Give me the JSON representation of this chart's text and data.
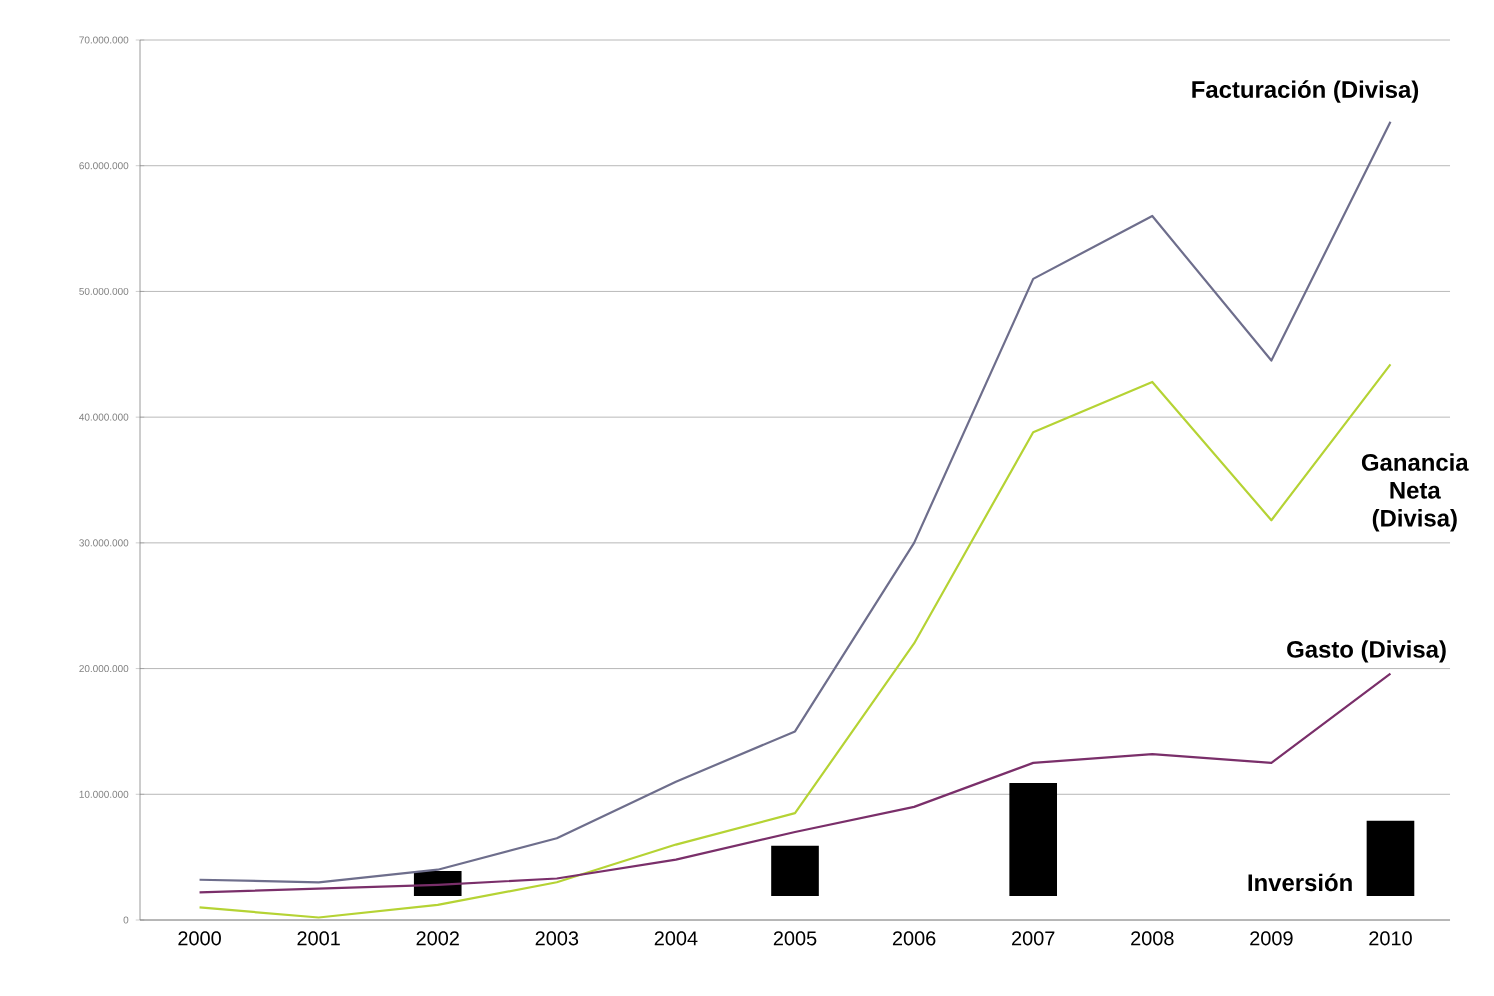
{
  "chart_data": {
    "type": "line",
    "categories": [
      "2000",
      "2001",
      "2002",
      "2003",
      "2004",
      "2005",
      "2006",
      "2007",
      "2008",
      "2009",
      "2010"
    ],
    "series": [
      {
        "name": "Facturación (Divisa)",
        "color": "#6e6e8c",
        "values": [
          3200000,
          3000000,
          4000000,
          6500000,
          11000000,
          15000000,
          30000000,
          51000000,
          56000000,
          44500000,
          63500000
        ]
      },
      {
        "name": "Ganancia Neta (Divisa)",
        "color": "#b5d334",
        "values": [
          1000000,
          200000,
          1200000,
          3000000,
          6000000,
          8500000,
          22000000,
          38800000,
          42800000,
          31800000,
          44200000
        ]
      },
      {
        "name": "Gasto (Divisa)",
        "color": "#7a2f6a",
        "values": [
          2200000,
          2500000,
          2800000,
          3300000,
          4800000,
          7000000,
          9000000,
          12500000,
          13200000,
          12500000,
          19600000
        ]
      },
      {
        "name": "Inversión",
        "type": "bar",
        "color": "#000000",
        "values": [
          null,
          null,
          2000000,
          null,
          null,
          4000000,
          null,
          9000000,
          null,
          null,
          6000000
        ],
        "base": [
          null,
          null,
          1900000,
          null,
          null,
          1900000,
          null,
          1900000,
          null,
          null,
          1900000
        ]
      }
    ],
    "ylim": [
      0,
      70000000
    ],
    "yticks": [
      {
        "value": 0,
        "label": "0"
      },
      {
        "value": 10000000,
        "label": "10.000.000"
      },
      {
        "value": 20000000,
        "label": "20.000.000"
      },
      {
        "value": 30000000,
        "label": "30.000.000"
      },
      {
        "value": 40000000,
        "label": "40.000.000"
      },
      {
        "value": 50000000,
        "label": "50.000.000"
      },
      {
        "value": 60000000,
        "label": "60.000.000"
      },
      {
        "value": 70000000,
        "label": "70.000.000"
      }
    ],
    "grid": "y"
  }
}
